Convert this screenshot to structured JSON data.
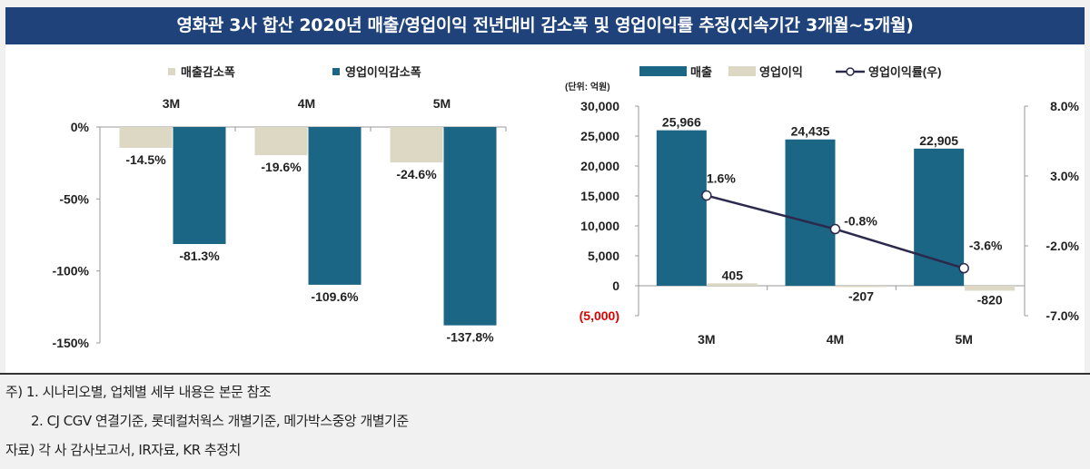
{
  "title": "영화관 3사 합산 2020년 매출/영업이익 전년대비 감소폭 및 영업이익률 추정(지속기간 3개월~5개월)",
  "colors": {
    "title_bg": "#1f427a",
    "teal": "#1b6585",
    "beige": "#dcd8c4",
    "line": "#2b2a4c",
    "negative_tick": "#e00000"
  },
  "chart_data": [
    {
      "type": "bar",
      "categories": [
        "3M",
        "4M",
        "5M"
      ],
      "series": [
        {
          "name": "매출감소폭",
          "values": [
            -14.5,
            -19.6,
            -24.6
          ],
          "labels": [
            "-14.5%",
            "-19.6%",
            "-24.6%"
          ],
          "color": "#dcd8c4"
        },
        {
          "name": "영업이익감소폭",
          "values": [
            -81.3,
            -109.6,
            -137.8
          ],
          "labels": [
            "-81.3%",
            "-109.6%",
            "-137.8%"
          ],
          "color": "#1b6585"
        }
      ],
      "ylim": [
        -150,
        0
      ],
      "yticks": [
        "0%",
        "-50%",
        "-100%",
        "-150%"
      ],
      "ytick_values": [
        0,
        -50,
        -100,
        -150
      ],
      "legend": "top",
      "grid": false
    },
    {
      "type": "bar+line",
      "unit_label": "(단위: 억원)",
      "categories": [
        "3M",
        "4M",
        "5M"
      ],
      "series": [
        {
          "name": "매출",
          "type": "bar",
          "axis": "left",
          "values": [
            25966,
            24435,
            22905
          ],
          "labels": [
            "25,966",
            "24,435",
            "22,905"
          ],
          "color": "#1b6585"
        },
        {
          "name": "영업이익",
          "type": "bar",
          "axis": "left",
          "values": [
            405,
            -207,
            -820
          ],
          "labels": [
            "405",
            "-207",
            "-820"
          ],
          "color": "#dcd8c4"
        },
        {
          "name": "영업이익률(우)",
          "type": "line",
          "axis": "right",
          "values": [
            1.6,
            -0.8,
            -3.6
          ],
          "labels": [
            "1.6%",
            "-0.8%",
            "-3.6%"
          ],
          "color": "#2b2a4c"
        }
      ],
      "ylim": [
        -5000,
        30000
      ],
      "yticks": [
        "30,000",
        "25,000",
        "20,000",
        "15,000",
        "10,000",
        "5,000",
        "0",
        "(5,000)"
      ],
      "ytick_values": [
        30000,
        25000,
        20000,
        15000,
        10000,
        5000,
        0,
        -5000
      ],
      "y2lim": [
        -7,
        8
      ],
      "y2ticks": [
        "8.0%",
        "3.0%",
        "-2.0%",
        "-7.0%"
      ],
      "y2tick_values": [
        8,
        3,
        -2,
        -7
      ],
      "legend": "top",
      "grid": false
    }
  ],
  "notes": [
    "주) 1. 시나리오별, 업체별 세부 내용은 본문 참조",
    "2. CJ CGV 연결기준, 롯데컬처웍스 개별기준, 메가박스중앙 개별기준",
    "자료) 각 사 감사보고서, IR자료, KR 추정치"
  ]
}
